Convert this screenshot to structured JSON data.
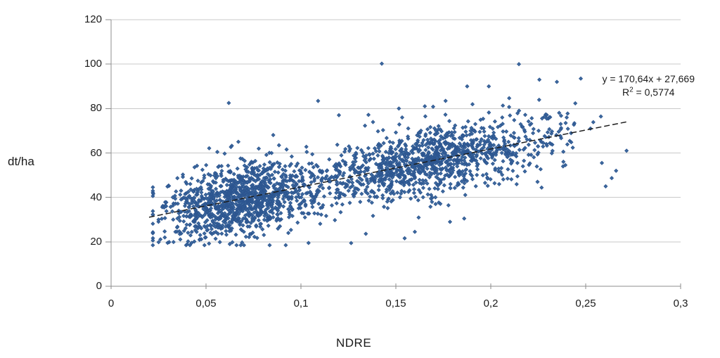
{
  "chart_data": {
    "type": "scatter",
    "title": "",
    "xlabel": "NDRE",
    "ylabel": "dt/ha",
    "xlim": [
      0,
      0.3
    ],
    "ylim": [
      0,
      120
    ],
    "x_tick_values": [
      0,
      0.05,
      0.1,
      0.15,
      0.2,
      0.25,
      0.3
    ],
    "x_tick_labels": [
      "0",
      "0,05",
      "0,1",
      "0,15",
      "0,2",
      "0,25",
      "0,3"
    ],
    "y_tick_values": [
      0,
      20,
      40,
      60,
      80,
      100,
      120
    ],
    "y_tick_labels": [
      "0",
      "20",
      "40",
      "60",
      "80",
      "100",
      "120"
    ],
    "grid": "horizontal",
    "legend_position": "none",
    "colors": {
      "background": "#ffffff",
      "gridline": "#c9c9c9",
      "axis": "#8e8e8e",
      "text": "#1a1a1a"
    },
    "trendline": {
      "label_equation": "y = 170,64x + 27,669",
      "label_r2_base": "R",
      "label_r2_sup": "2",
      "label_r2_rest": " = 0,5774",
      "slope": 170.64,
      "intercept": 27.669,
      "r_squared": 0.5774,
      "x_start": 0.02,
      "x_end": 0.272,
      "line_style": "dashed",
      "color": "#1c1c1c"
    },
    "series": [
      {
        "name": "dt/ha vs NDRE samples",
        "marker": "diamond",
        "marker_color": "#3E6A9E",
        "marker_edge": "#2C5590",
        "approx_point_count": 2300,
        "distribution": {
          "seed": 1337,
          "count": 2300,
          "x_mixture": [
            {
              "type": "normal",
              "weight": 0.42,
              "mean": 0.068,
              "sd": 0.02
            },
            {
              "type": "normal",
              "weight": 0.38,
              "mean": 0.165,
              "sd": 0.028
            },
            {
              "type": "uniform",
              "weight": 0.2,
              "min": 0.035,
              "max": 0.245
            }
          ],
          "x_clamp": [
            0.022,
            0.258
          ],
          "y_model": "slope * x + intercept + noise",
          "noise_sd": 7.5,
          "noise_outlier_prob": 0.06,
          "noise_outlier_sd": 14,
          "y_clamp": [
            18.5,
            90
          ]
        },
        "notable_points": [
          {
            "x": 0.1426,
            "y": 100.2
          },
          {
            "x": 0.2148,
            "y": 100.0
          },
          {
            "x": 0.2256,
            "y": 93.0
          },
          {
            "x": 0.2348,
            "y": 92.0
          },
          {
            "x": 0.2474,
            "y": 93.5
          },
          {
            "x": 0.062,
            "y": 82.5
          },
          {
            "x": 0.12,
            "y": 77.0
          },
          {
            "x": 0.1655,
            "y": 76.5
          },
          {
            "x": 0.24,
            "y": 76.0
          },
          {
            "x": 0.2525,
            "y": 71.0
          },
          {
            "x": 0.2715,
            "y": 61.0
          },
          {
            "x": 0.2637,
            "y": 48.7
          },
          {
            "x": 0.2585,
            "y": 55.5
          },
          {
            "x": 0.2605,
            "y": 45.0
          },
          {
            "x": 0.266,
            "y": 52.0
          },
          {
            "x": 0.0625,
            "y": 19.0
          },
          {
            "x": 0.092,
            "y": 18.5
          },
          {
            "x": 0.104,
            "y": 19.5
          },
          {
            "x": 0.16,
            "y": 24.5
          },
          {
            "x": 0.1785,
            "y": 29.0
          },
          {
            "x": 0.186,
            "y": 30.5
          }
        ]
      }
    ]
  }
}
